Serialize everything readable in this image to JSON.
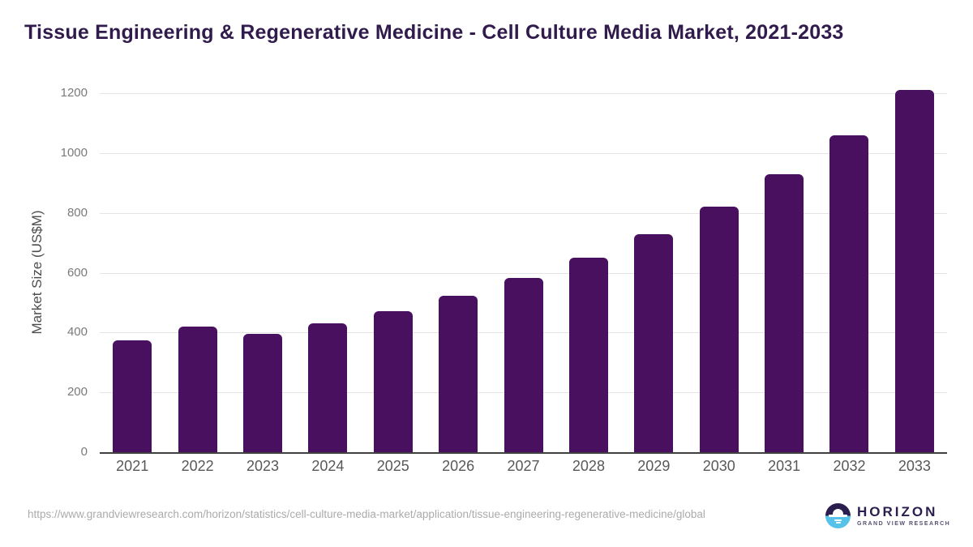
{
  "page": {
    "title": "Tissue Engineering & Regenerative Medicine - Cell Culture Media Market, 2021-2033"
  },
  "chart_data": {
    "type": "bar",
    "title": "Tissue Engineering & Regenerative Medicine - Cell Culture Media Market, 2021-2033",
    "categories": [
      "2021",
      "2022",
      "2023",
      "2024",
      "2025",
      "2026",
      "2027",
      "2028",
      "2029",
      "2030",
      "2031",
      "2032",
      "2033"
    ],
    "values": [
      375,
      420,
      395,
      430,
      472,
      522,
      582,
      650,
      728,
      820,
      930,
      1060,
      1210
    ],
    "xlabel": "",
    "ylabel": "Market Size (US$M)",
    "ylim": [
      0,
      1200
    ],
    "y_ticks": [
      0,
      200,
      400,
      600,
      800,
      1000,
      1200
    ],
    "grid": true,
    "legend": false,
    "bar_color": "#48105e"
  },
  "footer": {
    "source_url": "https://www.grandviewresearch.com/horizon/statistics/cell-culture-media-market/application/tissue-engineering-regenerative-medicine/global",
    "logo": {
      "name": "HORIZON",
      "subtitle": "GRAND VIEW RESEARCH"
    }
  },
  "colors": {
    "bar": "#48105e",
    "title": "#311b4d",
    "gridline": "#e4e4e4",
    "axis_line": "#404040",
    "logo_navy": "#2b1e4e",
    "logo_blue": "#56c1e9"
  }
}
